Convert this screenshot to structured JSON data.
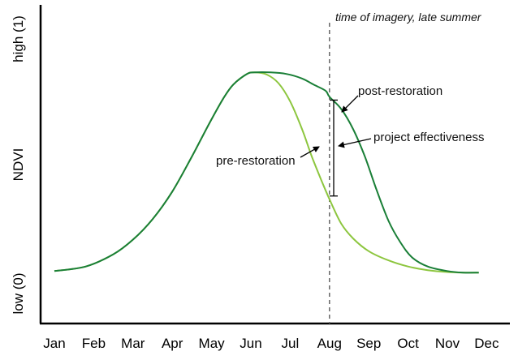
{
  "chart_data": {
    "type": "line",
    "title": "",
    "xlabel": "",
    "ylabel": "NDVI",
    "y_tick_labels": {
      "top": "high (1)",
      "bottom": "low (0)"
    },
    "ylim": [
      0,
      1
    ],
    "categories": [
      "Jan",
      "Feb",
      "Mar",
      "Apr",
      "May",
      "Jun",
      "Jul",
      "Aug",
      "Sep",
      "Oct",
      "Nov",
      "Dec"
    ],
    "series": [
      {
        "name": "pre-restoration",
        "color": "#8dc63f",
        "x": [
          1.0,
          1.8,
          2.5,
          3.0,
          3.5,
          4.0,
          4.5,
          4.95,
          5.3,
          5.55,
          5.9,
          6.1,
          6.4,
          6.7,
          7.0,
          7.3,
          7.55,
          7.8,
          8.0,
          8.3,
          8.6,
          9.0,
          9.5,
          10.0,
          10.5,
          11.0,
          11.4,
          11.8
        ],
        "values": [
          0.145,
          0.16,
          0.2,
          0.248,
          0.315,
          0.405,
          0.52,
          0.63,
          0.71,
          0.755,
          0.79,
          0.795,
          0.788,
          0.76,
          0.7,
          0.61,
          0.52,
          0.44,
          0.38,
          0.3,
          0.252,
          0.21,
          0.18,
          0.16,
          0.148,
          0.142,
          0.14,
          0.14
        ]
      },
      {
        "name": "post-restoration",
        "color": "#1a7f37",
        "x": [
          1.0,
          1.8,
          2.5,
          3.0,
          3.5,
          4.0,
          4.5,
          4.95,
          5.3,
          5.55,
          5.9,
          6.1,
          6.5,
          6.9,
          7.3,
          7.6,
          7.9,
          8.0,
          8.3,
          8.6,
          8.9,
          9.2,
          9.5,
          9.8,
          10.1,
          10.5,
          11.0,
          11.4,
          11.8
        ],
        "values": [
          0.145,
          0.16,
          0.2,
          0.248,
          0.315,
          0.405,
          0.52,
          0.63,
          0.71,
          0.755,
          0.79,
          0.795,
          0.795,
          0.79,
          0.775,
          0.755,
          0.735,
          0.715,
          0.675,
          0.61,
          0.52,
          0.41,
          0.31,
          0.24,
          0.19,
          0.16,
          0.145,
          0.14,
          0.14
        ]
      }
    ],
    "vline": {
      "x": 8.0,
      "label": "time of imagery, late summer",
      "style": "dashed"
    },
    "annotations": [
      {
        "text": "post-restoration"
      },
      {
        "text": "project effectiveness"
      },
      {
        "text": "pre-restoration"
      }
    ],
    "grid": false,
    "legend": "none"
  }
}
